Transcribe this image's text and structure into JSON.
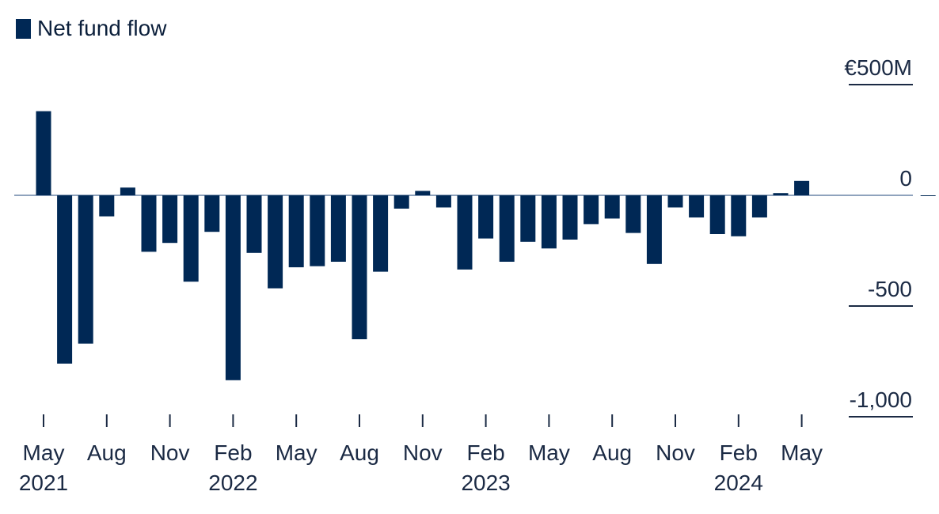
{
  "chart_data": {
    "type": "bar",
    "legend": {
      "entries": [
        "Net fund flow"
      ],
      "placement": "top-left"
    },
    "series": [
      {
        "name": "Net fund flow",
        "color": "#002855",
        "values": [
          380,
          -760,
          -670,
          -95,
          35,
          -255,
          -215,
          -390,
          -165,
          -835,
          -260,
          -420,
          -325,
          -320,
          -300,
          -650,
          -345,
          -60,
          20,
          -55,
          -335,
          -195,
          -300,
          -210,
          -240,
          -200,
          -130,
          -105,
          -170,
          -310,
          -55,
          -100,
          -175,
          -185,
          -100,
          10,
          65,
          0,
          0,
          0,
          0,
          0,
          -3
        ]
      }
    ],
    "x": [
      "2021-05",
      "2021-06",
      "2021-07",
      "2021-08",
      "2021-09",
      "2021-10",
      "2021-11",
      "2021-12",
      "2022-01",
      "2022-02",
      "2022-03",
      "2022-04",
      "2022-05",
      "2022-06",
      "2022-07",
      "2022-08",
      "2022-09",
      "2022-10",
      "2022-11",
      "2022-12",
      "2023-01",
      "2023-02",
      "2023-03",
      "2023-04",
      "2023-05",
      "2023-06",
      "2023-07",
      "2023-08",
      "2023-09",
      "2023-10",
      "2023-11",
      "2023-12",
      "2024-01",
      "2024-02",
      "2024-03",
      "2024-04",
      "2024-05",
      "2024-06",
      "2024-07",
      "2024-08",
      "2024-09",
      "2024-10",
      "2024-11"
    ],
    "x_ticks": [
      {
        "x": "2021-05",
        "month": "May",
        "year": "2021"
      },
      {
        "x": "2021-08",
        "month": "Aug",
        "year": ""
      },
      {
        "x": "2021-11",
        "month": "Nov",
        "year": ""
      },
      {
        "x": "2022-02",
        "month": "Feb",
        "year": "2022"
      },
      {
        "x": "2022-05",
        "month": "May",
        "year": ""
      },
      {
        "x": "2022-08",
        "month": "Aug",
        "year": ""
      },
      {
        "x": "2022-11",
        "month": "Nov",
        "year": ""
      },
      {
        "x": "2023-02",
        "month": "Feb",
        "year": "2023"
      },
      {
        "x": "2023-05",
        "month": "May",
        "year": ""
      },
      {
        "x": "2023-08",
        "month": "Aug",
        "year": ""
      },
      {
        "x": "2023-11",
        "month": "Nov",
        "year": ""
      },
      {
        "x": "2024-02",
        "month": "Feb",
        "year": "2024"
      },
      {
        "x": "2024-05",
        "month": "May",
        "year": ""
      }
    ],
    "y_ticks": [
      {
        "value": 500,
        "label": "€500M"
      },
      {
        "value": 0,
        "label": "0"
      },
      {
        "value": -500,
        "label": "-500"
      },
      {
        "value": -1000,
        "label": "-1,000"
      }
    ],
    "ylim": [
      -1000,
      500
    ],
    "axis_position": "right",
    "grid": false,
    "title": "",
    "xlabel": "",
    "ylabel": ""
  }
}
